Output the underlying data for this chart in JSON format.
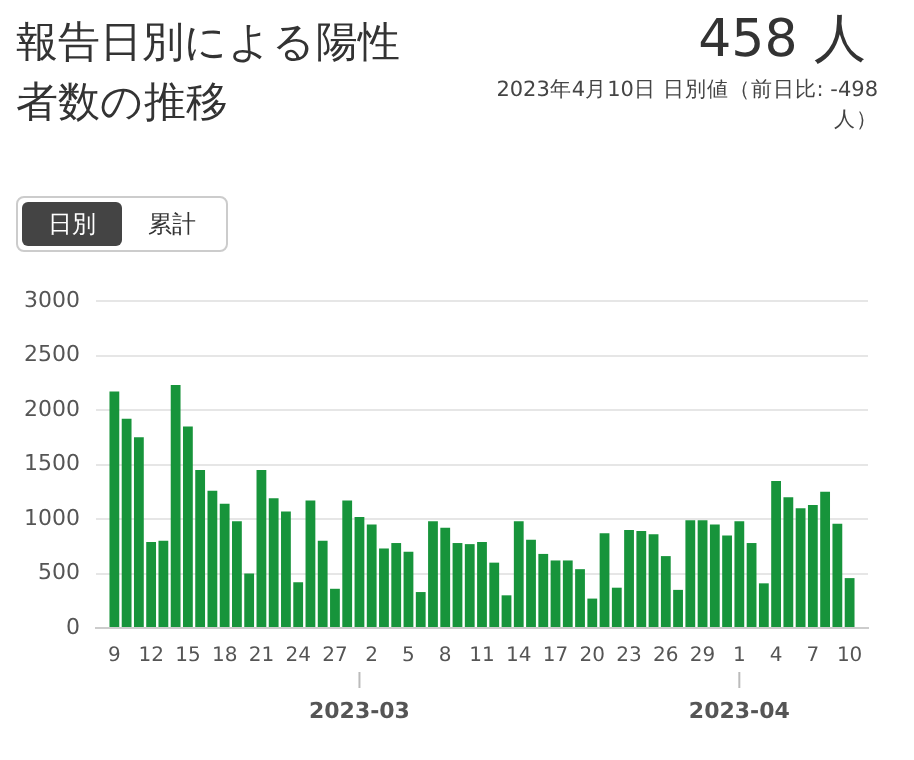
{
  "chart_data": {
    "type": "bar",
    "title": "報告日別による陽性者数の推移",
    "subtitle": "2023年4月10日 日別値（前日比: -498 人）",
    "annotations": [
      "458 人",
      "日別",
      "累計",
      {
        "text": "2023-03",
        "x": "2023-03-01"
      },
      {
        "text": "2023-04",
        "x": "2023-04-01"
      }
    ],
    "x": [
      "2023-02-09",
      "2023-02-10",
      "2023-02-11",
      "2023-02-12",
      "2023-02-13",
      "2023-02-14",
      "2023-02-15",
      "2023-02-16",
      "2023-02-17",
      "2023-02-18",
      "2023-02-19",
      "2023-02-20",
      "2023-02-21",
      "2023-02-22",
      "2023-02-23",
      "2023-02-24",
      "2023-02-25",
      "2023-02-26",
      "2023-02-27",
      "2023-02-28",
      "2023-03-01",
      "2023-03-02",
      "2023-03-03",
      "2023-03-04",
      "2023-03-05",
      "2023-03-06",
      "2023-03-07",
      "2023-03-08",
      "2023-03-09",
      "2023-03-10",
      "2023-03-11",
      "2023-03-12",
      "2023-03-13",
      "2023-03-14",
      "2023-03-15",
      "2023-03-16",
      "2023-03-17",
      "2023-03-18",
      "2023-03-19",
      "2023-03-20",
      "2023-03-21",
      "2023-03-22",
      "2023-03-23",
      "2023-03-24",
      "2023-03-25",
      "2023-03-26",
      "2023-03-27",
      "2023-03-28",
      "2023-03-29",
      "2023-03-30",
      "2023-03-31",
      "2023-04-01",
      "2023-04-02",
      "2023-04-03",
      "2023-04-04",
      "2023-04-05",
      "2023-04-06",
      "2023-04-07",
      "2023-04-08",
      "2023-04-09",
      "2023-04-10"
    ],
    "values": [
      2170,
      1920,
      1750,
      790,
      800,
      2230,
      1850,
      1450,
      1260,
      1140,
      980,
      500,
      1450,
      1190,
      1070,
      420,
      1170,
      800,
      360,
      1170,
      1020,
      950,
      730,
      780,
      700,
      330,
      980,
      920,
      780,
      770,
      790,
      600,
      300,
      980,
      810,
      680,
      620,
      620,
      540,
      270,
      870,
      370,
      900,
      890,
      860,
      660,
      350,
      990,
      990,
      950,
      850,
      980,
      780,
      410,
      1350,
      1200,
      1100,
      1130,
      1250,
      956,
      458
    ],
    "color": "#17943b",
    "xlim": [
      "2023-02-09",
      "2023-04-10"
    ],
    "xticks": [
      {
        "value": "2023-02-09",
        "label": "9"
      },
      {
        "value": "2023-02-12",
        "label": "12"
      },
      {
        "value": "2023-02-15",
        "label": "15"
      },
      {
        "value": "2023-02-18",
        "label": "18"
      },
      {
        "value": "2023-02-21",
        "label": "21"
      },
      {
        "value": "2023-02-24",
        "label": "24"
      },
      {
        "value": "2023-02-27",
        "label": "27"
      },
      {
        "value": "2023-03-02",
        "label": "2"
      },
      {
        "value": "2023-03-05",
        "label": "5"
      },
      {
        "value": "2023-03-08",
        "label": "8"
      },
      {
        "value": "2023-03-11",
        "label": "11"
      },
      {
        "value": "2023-03-14",
        "label": "14"
      },
      {
        "value": "2023-03-17",
        "label": "17"
      },
      {
        "value": "2023-03-20",
        "label": "20"
      },
      {
        "value": "2023-03-23",
        "label": "23"
      },
      {
        "value": "2023-03-26",
        "label": "26"
      },
      {
        "value": "2023-03-29",
        "label": "29"
      },
      {
        "value": "2023-04-01",
        "label": "1"
      },
      {
        "value": "2023-04-04",
        "label": "4"
      },
      {
        "value": "2023-04-07",
        "label": "7"
      },
      {
        "value": "2023-04-10",
        "label": "10"
      }
    ],
    "ylim": [
      0,
      3000
    ],
    "yticks": [
      0,
      500,
      1000,
      1500,
      2000,
      2500,
      3000
    ],
    "grid": "y"
  }
}
